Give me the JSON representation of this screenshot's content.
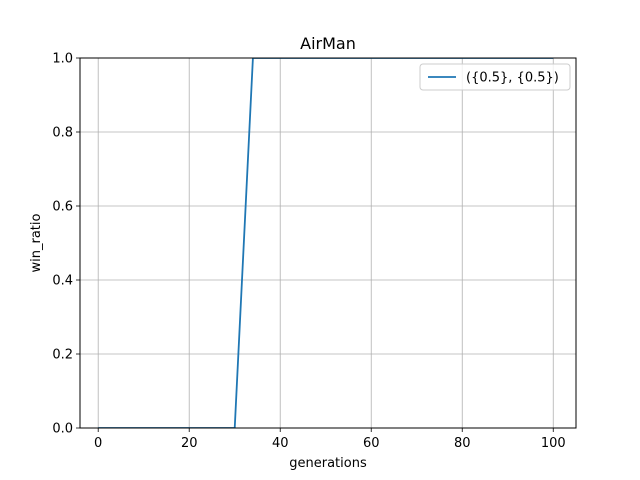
{
  "chart_data": {
    "type": "line",
    "title": "AirMan",
    "xlabel": "generations",
    "ylabel": "win_ratio",
    "xlim": [
      -4,
      105
    ],
    "ylim": [
      0,
      1.0
    ],
    "xticks": [
      0,
      20,
      40,
      60,
      80,
      100
    ],
    "yticks": [
      0.0,
      0.2,
      0.4,
      0.6,
      0.8,
      1.0
    ],
    "xtick_labels": [
      "0",
      "20",
      "40",
      "60",
      "80",
      "100"
    ],
    "ytick_labels": [
      "0.0",
      "0.2",
      "0.4",
      "0.6",
      "0.8",
      "1.0"
    ],
    "grid": true,
    "legend_position": "top-right",
    "series": [
      {
        "name": "({0.5}, {0.5})",
        "color": "#1f77b4",
        "x": [
          0,
          30,
          34,
          100
        ],
        "y": [
          0,
          0,
          1.0,
          1.0
        ]
      }
    ]
  }
}
